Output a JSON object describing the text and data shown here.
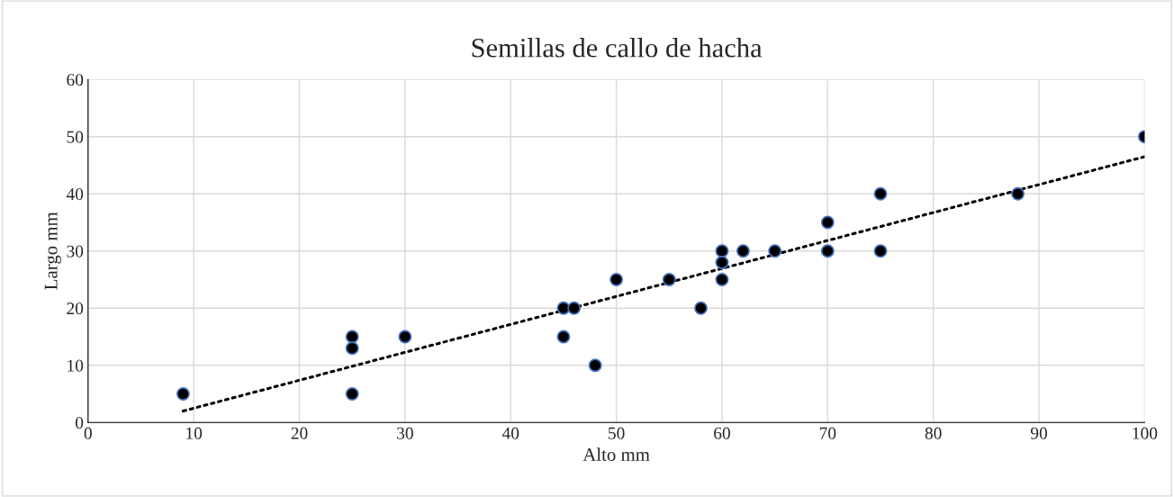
{
  "chart_data": {
    "type": "scatter",
    "title": "Semillas de callo de hacha",
    "xlabel": "Alto mm",
    "ylabel": "Largo mm",
    "xlim": [
      0,
      100
    ],
    "xticks": [
      0,
      10,
      20,
      30,
      40,
      50,
      60,
      70,
      80,
      90,
      100
    ],
    "ylim": [
      0,
      60
    ],
    "yticks": [
      0,
      10,
      20,
      30,
      40,
      50,
      60
    ],
    "grid": true,
    "series": [
      {
        "type": "scatter",
        "color": "#000000",
        "marker": "circle",
        "x": [
          9,
          25,
          25,
          25,
          30,
          45,
          45,
          46,
          48,
          50,
          55,
          58,
          60,
          60,
          60,
          62,
          65,
          70,
          70,
          75,
          75,
          88,
          100
        ],
        "values": [
          5,
          15,
          13,
          5,
          15,
          20,
          15,
          20,
          10,
          25,
          25,
          20,
          30,
          28,
          25,
          30,
          30,
          35,
          30,
          40,
          30,
          40,
          50
        ]
      },
      {
        "type": "line",
        "color": "#000000",
        "line_style": "dotted",
        "marker": "none",
        "x": [
          9,
          100
        ],
        "values": [
          2,
          46.5
        ]
      }
    ]
  }
}
